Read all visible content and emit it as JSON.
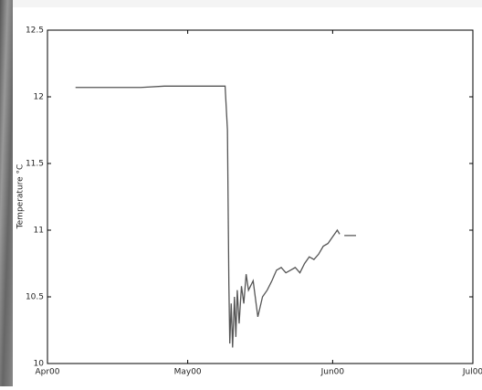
{
  "chart_data": {
    "type": "line",
    "y_label": "Temperature °C",
    "x": [
      6,
      10,
      15,
      20,
      25,
      30,
      35,
      38,
      38.5,
      38.8,
      39,
      39.3,
      39.6,
      40,
      40.3,
      40.6,
      41,
      41.5,
      42,
      42.5,
      43,
      44,
      45,
      46,
      47,
      48,
      49,
      50,
      51,
      52,
      53,
      54,
      55,
      56,
      57,
      58,
      59,
      60,
      61,
      62,
      62.5,
      63,
      63.5,
      66
    ],
    "series": [
      {
        "color": "#555555",
        "values": [
          12.07,
          12.07,
          12.07,
          12.07,
          12.08,
          12.08,
          12.08,
          12.08,
          11.75,
          10.6,
          10.15,
          10.45,
          10.12,
          10.5,
          10.2,
          10.55,
          10.3,
          10.58,
          10.45,
          10.67,
          10.55,
          10.62,
          10.35,
          10.5,
          10.55,
          10.62,
          10.7,
          10.72,
          10.68,
          10.7,
          10.72,
          10.68,
          10.75,
          10.8,
          10.78,
          10.82,
          10.88,
          10.9,
          10.95,
          11.0,
          10.97,
          null,
          10.96,
          10.96
        ]
      }
    ],
    "xlim": [
      0,
      91
    ],
    "xticks": [
      {
        "value": 0,
        "label": "Apr00"
      },
      {
        "value": 30,
        "label": "May00"
      },
      {
        "value": 61,
        "label": "Jun00"
      },
      {
        "value": 91,
        "label": "Jul00"
      }
    ],
    "ylim": [
      10,
      12.5
    ],
    "yticks": [
      10,
      10.5,
      11,
      11.5,
      12,
      12.5
    ],
    "grid": false
  }
}
